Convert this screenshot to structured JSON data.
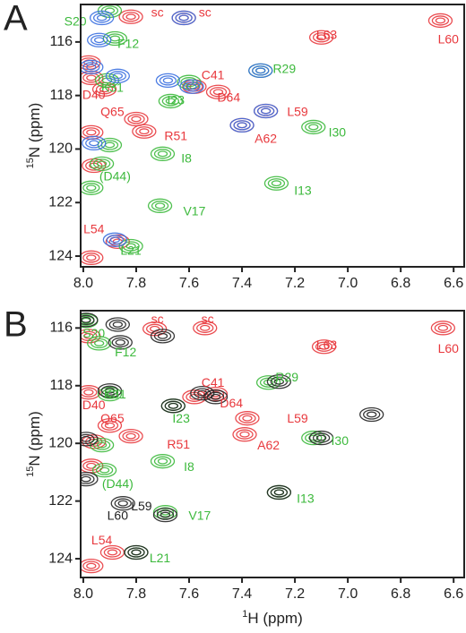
{
  "chart_data": [
    {
      "type": "scatter",
      "panel": "A",
      "ylabel_sup": "15",
      "ylabel": "N (ppm)",
      "xlim": [
        8.01,
        6.56
      ],
      "ylim": [
        114.6,
        124.4
      ],
      "xticks": [
        {
          "value": 8,
          "label": "8.0"
        },
        7.8,
        7.6,
        7.4,
        7.2,
        {
          "value": 7,
          "label": "7.0"
        },
        6.8,
        6.6
      ],
      "yticks": [
        116,
        118,
        120,
        122,
        124
      ],
      "series": [
        {
          "color": "#e8383d",
          "x": [
            6.65,
            7.1,
            7.82,
            7.62,
            7.98,
            7.92,
            7.97,
            7.58,
            7.49,
            7.31,
            7.4,
            7.8,
            7.77,
            7.97,
            7.96,
            7.97,
            7.87
          ],
          "values": [
            115.2,
            115.83,
            115.06,
            115.1,
            116.77,
            117.77,
            117.34,
            117.67,
            117.87,
            118.58,
            119.11,
            118.88,
            119.34,
            119.38,
            120.62,
            124.06,
            123.46
          ]
        },
        {
          "color": "#3cb93c",
          "x": [
            7.9,
            7.88,
            7.33,
            7.91,
            7.67,
            7.13,
            7.7,
            7.93,
            7.27,
            7.71,
            7.82,
            7.97,
            7.9,
            7.6
          ],
          "values": [
            114.83,
            115.87,
            117.07,
            117.44,
            118.21,
            119.18,
            120.18,
            120.55,
            121.28,
            122.12,
            123.63,
            121.45,
            119.85,
            117.5
          ]
        },
        {
          "color": "#3a6fe0",
          "x": [
            7.97,
            7.87,
            7.93,
            7.62,
            7.59,
            7.68,
            7.33,
            7.31,
            7.4,
            7.88,
            7.96,
            7.94
          ],
          "values": [
            116.94,
            117.27,
            115.1,
            115.1,
            117.67,
            117.44,
            117.07,
            118.58,
            119.11,
            123.39,
            119.78,
            115.93
          ]
        }
      ],
      "annotations": [
        {
          "text": "sc",
          "x": 7.72,
          "y": 114.93,
          "color": "#e8383d"
        },
        {
          "text": "sc",
          "x": 7.54,
          "y": 114.93,
          "color": "#e8383d"
        },
        {
          "text": "S20",
          "x": 8.03,
          "y": 115.26,
          "color": "#3cb93c"
        },
        {
          "text": "L63",
          "x": 7.08,
          "y": 115.77,
          "color": "#e8383d"
        },
        {
          "text": "L60",
          "x": 6.62,
          "y": 115.93,
          "color": "#e8383d"
        },
        {
          "text": "F12",
          "x": 7.83,
          "y": 116.1,
          "color": "#3cb93c"
        },
        {
          "text": "R29",
          "x": 7.24,
          "y": 117.04,
          "color": "#3cb93c"
        },
        {
          "text": "C41",
          "x": 7.51,
          "y": 117.27,
          "color": "#e8383d"
        },
        {
          "text": "K31",
          "x": 7.89,
          "y": 117.74,
          "color": "#3cb93c"
        },
        {
          "text": "D64",
          "x": 7.45,
          "y": 118.1,
          "color": "#e8383d"
        },
        {
          "text": "D40",
          "x": 7.96,
          "y": 118.0,
          "color": "#e8383d"
        },
        {
          "text": "I23",
          "x": 7.65,
          "y": 118.2,
          "color": "#3cb93c"
        },
        {
          "text": "L59",
          "x": 7.19,
          "y": 118.64,
          "color": "#e8383d"
        },
        {
          "text": "Q65",
          "x": 7.89,
          "y": 118.64,
          "color": "#e8383d"
        },
        {
          "text": "A62",
          "x": 7.31,
          "y": 119.65,
          "color": "#e8383d"
        },
        {
          "text": "R51",
          "x": 7.65,
          "y": 119.55,
          "color": "#e8383d"
        },
        {
          "text": "I30",
          "x": 7.04,
          "y": 119.41,
          "color": "#3cb93c"
        },
        {
          "text": "I8",
          "x": 7.61,
          "y": 120.38,
          "color": "#3cb93c"
        },
        {
          "text": "(D44)",
          "x": 7.88,
          "y": 121.05,
          "color": "#3cb93c"
        },
        {
          "text": "I13",
          "x": 7.17,
          "y": 121.58,
          "color": "#3cb93c"
        },
        {
          "text": "V17",
          "x": 7.58,
          "y": 122.35,
          "color": "#3cb93c"
        },
        {
          "text": "L54",
          "x": 7.96,
          "y": 123.02,
          "color": "#e8383d"
        },
        {
          "text": "L21",
          "x": 7.82,
          "y": 123.83,
          "color": "#3cb93c"
        }
      ]
    },
    {
      "type": "scatter",
      "panel": "B",
      "ylabel_sup": "15",
      "ylabel": "N (ppm)",
      "xlabel_sup": "1",
      "xlabel": "H (ppm)",
      "xlim": [
        8.01,
        6.56
      ],
      "ylim": [
        115.4,
        124.65
      ],
      "xticks": [
        {
          "value": 8,
          "label": "8.0"
        },
        7.8,
        7.6,
        7.4,
        7.2,
        {
          "value": 7,
          "label": "7.0"
        },
        6.8,
        6.6
      ],
      "yticks": [
        116,
        118,
        120,
        122,
        124
      ],
      "series": [
        {
          "color": "#e8383d",
          "x": [
            6.64,
            7.09,
            7.73,
            7.54,
            7.98,
            7.98,
            7.5,
            7.58,
            7.38,
            7.39,
            7.82,
            7.9,
            7.96,
            7.97,
            7.97,
            7.89
          ],
          "values": [
            116.0,
            116.65,
            116.03,
            116.0,
            116.28,
            118.23,
            118.29,
            118.39,
            119.13,
            119.69,
            119.75,
            119.38,
            119.94,
            120.78,
            124.25,
            123.78
          ]
        },
        {
          "color": "#3cb93c",
          "x": [
            7.99,
            7.94,
            7.9,
            7.3,
            7.66,
            7.13,
            7.7,
            7.92,
            7.26,
            7.69,
            7.8,
            7.93
          ],
          "values": [
            115.75,
            116.53,
            118.29,
            117.89,
            118.7,
            119.81,
            120.62,
            120.93,
            121.7,
            122.39,
            123.78,
            120.06
          ]
        },
        {
          "color": "#222222",
          "x": [
            7.99,
            7.87,
            7.7,
            7.86,
            7.9,
            7.55,
            7.66,
            7.5,
            7.26,
            7.99,
            7.99,
            7.85,
            7.69,
            7.26,
            7.8,
            6.91,
            7.1
          ],
          "values": [
            115.72,
            115.88,
            116.28,
            116.5,
            118.17,
            118.26,
            118.7,
            118.39,
            117.86,
            119.85,
            121.24,
            122.08,
            122.48,
            121.7,
            123.78,
            119.0,
            119.81
          ]
        }
      ],
      "annotations": [
        {
          "text": "sc",
          "x": 7.72,
          "y": 115.72,
          "color": "#e8383d"
        },
        {
          "text": "sc",
          "x": 7.53,
          "y": 115.72,
          "color": "#e8383d"
        },
        {
          "text": "S20",
          "x": 7.96,
          "y": 116.22,
          "color": "#3cb93c"
        },
        {
          "text": "L63",
          "x": 7.08,
          "y": 116.62,
          "color": "#e8383d"
        },
        {
          "text": "L60",
          "x": 6.62,
          "y": 116.74,
          "color": "#e8383d"
        },
        {
          "text": "F12",
          "x": 7.84,
          "y": 116.87,
          "color": "#3cb93c"
        },
        {
          "text": "R29",
          "x": 7.23,
          "y": 117.74,
          "color": "#3cb93c"
        },
        {
          "text": "C41",
          "x": 7.51,
          "y": 117.92,
          "color": "#e8383d"
        },
        {
          "text": "K31",
          "x": 7.88,
          "y": 118.33,
          "color": "#3cb93c"
        },
        {
          "text": "D64",
          "x": 7.44,
          "y": 118.64,
          "color": "#e8383d"
        },
        {
          "text": "D40",
          "x": 7.96,
          "y": 118.7,
          "color": "#e8383d"
        },
        {
          "text": "I23",
          "x": 7.63,
          "y": 119.16,
          "color": "#3cb93c"
        },
        {
          "text": "L59",
          "x": 7.19,
          "y": 119.16,
          "color": "#e8383d"
        },
        {
          "text": "Q65",
          "x": 7.89,
          "y": 119.16,
          "color": "#e8383d"
        },
        {
          "text": "A62",
          "x": 7.3,
          "y": 120.09,
          "color": "#e8383d"
        },
        {
          "text": "R51",
          "x": 7.64,
          "y": 120.06,
          "color": "#e8383d"
        },
        {
          "text": "I30",
          "x": 7.03,
          "y": 119.94,
          "color": "#3cb93c"
        },
        {
          "text": "I8",
          "x": 7.6,
          "y": 120.84,
          "color": "#3cb93c"
        },
        {
          "text": "(D44)",
          "x": 7.87,
          "y": 121.43,
          "color": "#3cb93c"
        },
        {
          "text": "I13",
          "x": 7.16,
          "y": 121.95,
          "color": "#3cb93c"
        },
        {
          "text": "L59",
          "x": 7.78,
          "y": 122.2,
          "color": "#222222"
        },
        {
          "text": "V17",
          "x": 7.56,
          "y": 122.54,
          "color": "#3cb93c"
        },
        {
          "text": "L60",
          "x": 7.87,
          "y": 122.54,
          "color": "#222222"
        },
        {
          "text": "L54",
          "x": 7.93,
          "y": 123.38,
          "color": "#e8383d"
        },
        {
          "text": "L21",
          "x": 7.71,
          "y": 124.0,
          "color": "#3cb93c"
        }
      ]
    }
  ]
}
